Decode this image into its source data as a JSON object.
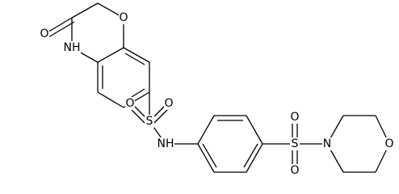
{
  "atoms": [
    "O",
    "O",
    "NH",
    "S",
    "O",
    "O",
    "NH",
    "S",
    "O",
    "O",
    "N",
    "O"
  ]
}
